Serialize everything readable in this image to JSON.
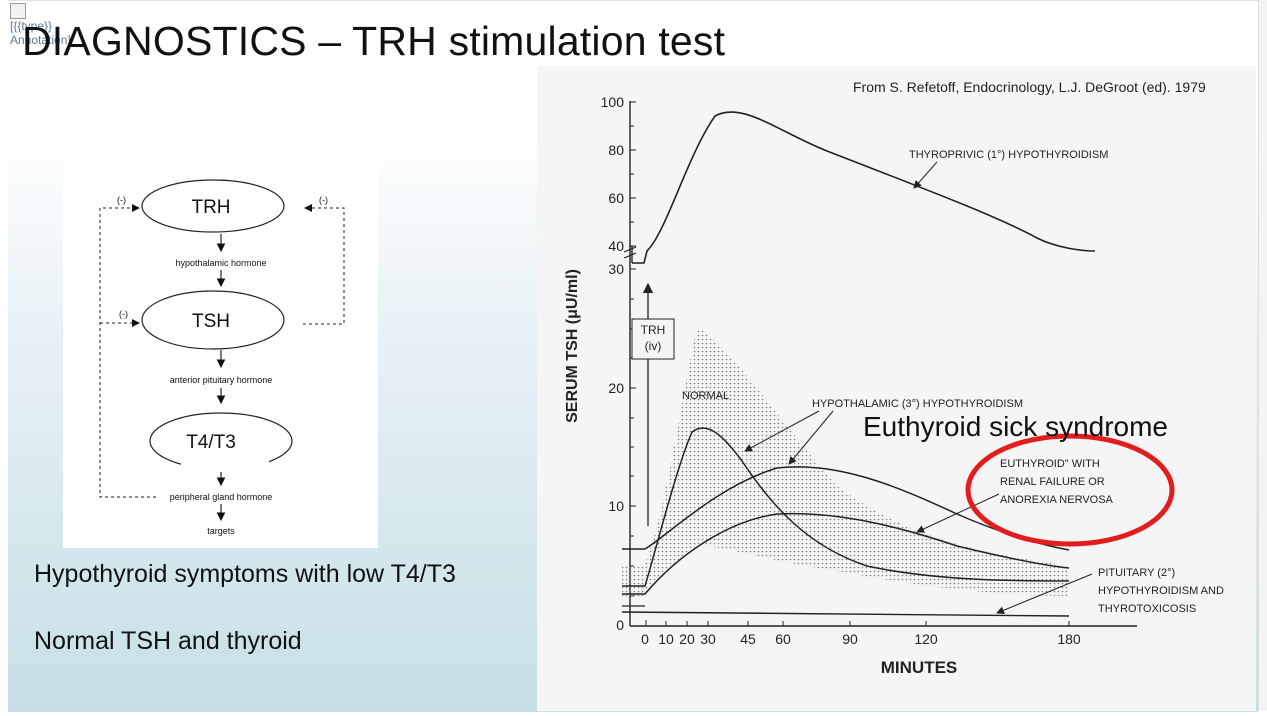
{
  "slide": {
    "title": "DIAGNOSTICS – TRH stimulation test",
    "broken_image": {
      "line1": "[{{type}}",
      "line2": "Annotation]"
    },
    "captions": [
      "Hypothyroid symptoms with low T4/T3",
      "Normal TSH and thyroid"
    ],
    "annotation": "Euthyroid sick syndrome",
    "accent_color": "#e21d1d"
  },
  "diagram": {
    "nodes": [
      "TRH",
      "TSH",
      "T4/T3"
    ],
    "labels": [
      "hypothalamic hormone",
      "anterior pituitary hormone",
      "peripheral gland hormone",
      "targets"
    ],
    "feedback_sign": "(-)"
  },
  "graph": {
    "source": "From S. Refetoff, Endocrinology, L.J. DeGroot (ed). 1979",
    "ylabel": "SERUM TSH (μU/ml)",
    "xlabel": "MINUTES",
    "trh_label_1": "TRH",
    "trh_label_2": "(iv)",
    "curve_labels": {
      "thyroprivic": "THYROPRIVIC (1°) HYPOTHYROIDISM",
      "normal": "NORMAL",
      "hypothalamic": "HYPOTHALAMIC (3°) HYPOTHYROIDISM",
      "euthyroid_1": "EUTHYROID\" WITH",
      "euthyroid_2": "RENAL FAILURE  OR",
      "euthyroid_3": "ANOREXIA NERVOSA",
      "pituitary_1": "PITUITARY (2°)",
      "pituitary_2": "HYPOTHYROIDISM AND",
      "pituitary_3": "THYROTOXICOSIS"
    },
    "y_ticks": [
      "0",
      "10",
      "20",
      "30",
      "40",
      "60",
      "80",
      "100"
    ],
    "x_ticks": [
      "0",
      "10",
      "20",
      "30",
      "45",
      "60",
      "90",
      "120",
      "180"
    ]
  }
}
